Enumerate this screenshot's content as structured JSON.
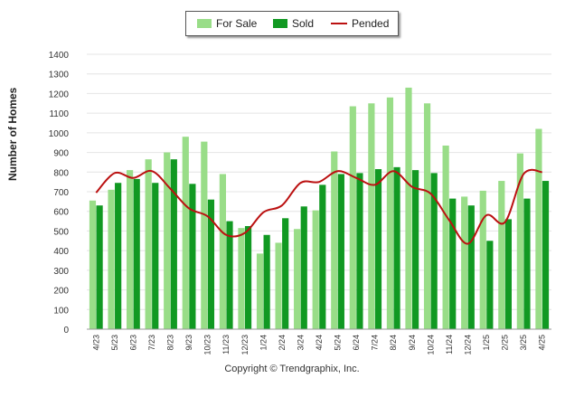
{
  "chart_data": {
    "type": "bar",
    "title": "",
    "xlabel": "",
    "ylabel": "Number of Homes",
    "ylim": [
      0,
      1400
    ],
    "yticks": [
      0,
      100,
      200,
      300,
      400,
      500,
      600,
      700,
      800,
      900,
      1000,
      1100,
      1200,
      1300,
      1400
    ],
    "grid": true,
    "legend_position": "top-center",
    "categories": [
      "4/23",
      "5/23",
      "6/23",
      "7/23",
      "8/23",
      "9/23",
      "10/23",
      "11/23",
      "12/23",
      "1/24",
      "2/24",
      "3/24",
      "4/24",
      "5/24",
      "6/24",
      "7/24",
      "8/24",
      "9/24",
      "10/24",
      "11/24",
      "12/24",
      "1/25",
      "2/25",
      "3/25",
      "4/25"
    ],
    "series": [
      {
        "name": "For Sale",
        "kind": "bar",
        "color": "#99dd88",
        "values": [
          655,
          710,
          810,
          865,
          900,
          980,
          955,
          790,
          515,
          385,
          440,
          510,
          605,
          905,
          1135,
          1150,
          1180,
          1230,
          1150,
          935,
          675,
          705,
          755,
          895,
          1020
        ]
      },
      {
        "name": "Sold",
        "kind": "bar",
        "color": "#119922",
        "values": [
          630,
          745,
          765,
          745,
          865,
          740,
          660,
          550,
          525,
          480,
          565,
          625,
          735,
          790,
          795,
          815,
          825,
          810,
          795,
          665,
          630,
          450,
          560,
          665,
          755
        ]
      },
      {
        "name": "Pended",
        "kind": "line",
        "color": "#bb1111",
        "values": [
          695,
          795,
          770,
          805,
          715,
          615,
          575,
          480,
          490,
          595,
          630,
          745,
          750,
          805,
          770,
          735,
          805,
          725,
          690,
          555,
          435,
          580,
          545,
          790,
          800
        ]
      }
    ]
  },
  "copyright": "Copyright © Trendgraphix, Inc."
}
